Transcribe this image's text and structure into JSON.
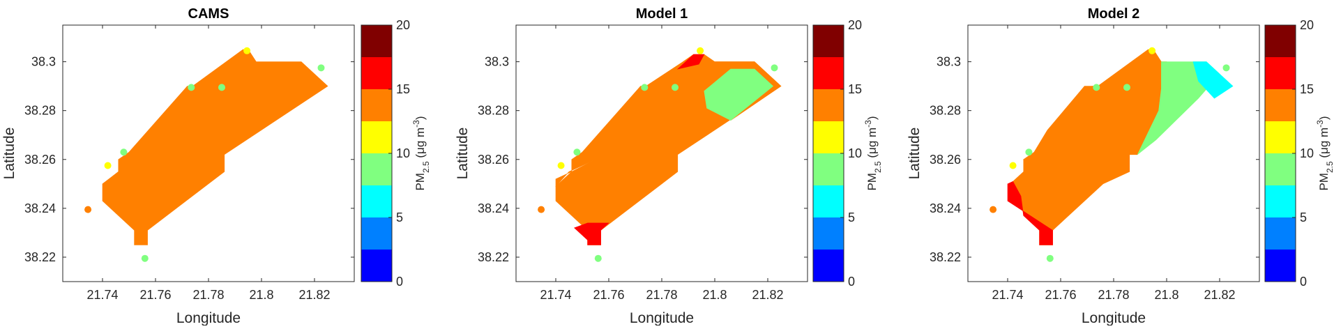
{
  "chart_data": [
    {
      "type": "heatmap",
      "title": "CAMS",
      "xlabel": "Longitude",
      "ylabel": "Latitude",
      "xlim": [
        21.725,
        21.835
      ],
      "ylim": [
        38.21,
        38.315
      ],
      "xticks": [
        21.74,
        21.76,
        21.78,
        21.8,
        21.82
      ],
      "xtick_labels": [
        "21.74",
        "21.76",
        "21.78",
        "21.8",
        "21.82"
      ],
      "yticks": [
        38.22,
        38.24,
        38.26,
        38.28,
        38.3
      ],
      "ytick_labels": [
        "38.22",
        "38.24",
        "38.26",
        "38.28",
        "38.3"
      ],
      "grid": false,
      "regions": [
        {
          "level": 12.5,
          "polygon": [
            [
              21.74,
              38.243
            ],
            [
              21.74,
              38.25
            ],
            [
              21.746,
              38.255
            ],
            [
              21.746,
              38.26
            ],
            [
              21.75,
              38.263
            ],
            [
              21.772,
              38.29
            ],
            [
              21.774,
              38.29
            ],
            [
              21.793,
              38.305
            ],
            [
              21.795,
              38.305
            ],
            [
              21.798,
              38.3
            ],
            [
              21.815,
              38.3
            ],
            [
              21.825,
              38.29
            ],
            [
              21.786,
              38.262
            ],
            [
              21.786,
              38.255
            ],
            [
              21.757,
              38.231
            ],
            [
              21.757,
              38.225
            ],
            [
              21.752,
              38.225
            ],
            [
              21.752,
              38.231
            ]
          ]
        }
      ],
      "stations": [
        {
          "lon": 21.7345,
          "lat": 38.2395,
          "value": 14
        },
        {
          "lon": 21.742,
          "lat": 38.2575,
          "value": 12
        },
        {
          "lon": 21.748,
          "lat": 38.263,
          "value": 9
        },
        {
          "lon": 21.756,
          "lat": 38.2195,
          "value": 9
        },
        {
          "lon": 21.7735,
          "lat": 38.2895,
          "value": 9
        },
        {
          "lon": 21.785,
          "lat": 38.2895,
          "value": 9
        },
        {
          "lon": 21.7945,
          "lat": 38.3045,
          "value": 12
        },
        {
          "lon": 21.8225,
          "lat": 38.2975,
          "value": 9
        }
      ]
    },
    {
      "type": "heatmap",
      "title": "Model 1",
      "xlabel": "Longitude",
      "ylabel": "Latitude",
      "xlim": [
        21.725,
        21.835
      ],
      "ylim": [
        38.21,
        38.315
      ],
      "xticks": [
        21.74,
        21.76,
        21.78,
        21.8,
        21.82
      ],
      "xtick_labels": [
        "21.74",
        "21.76",
        "21.78",
        "21.8",
        "21.82"
      ],
      "yticks": [
        38.22,
        38.24,
        38.26,
        38.28,
        38.3
      ],
      "ytick_labels": [
        "38.22",
        "38.24",
        "38.26",
        "38.28",
        "38.3"
      ],
      "grid": false,
      "regions": [
        {
          "level": 12.5,
          "polygon": [
            [
              21.74,
              38.249
            ],
            [
              21.74,
              38.252
            ],
            [
              21.746,
              38.255
            ],
            [
              21.746,
              38.26
            ],
            [
              21.75,
              38.263
            ],
            [
              21.772,
              38.29
            ],
            [
              21.774,
              38.29
            ],
            [
              21.788,
              38.3
            ],
            [
              21.792,
              38.303
            ],
            [
              21.796,
              38.303
            ],
            [
              21.8,
              38.3
            ],
            [
              21.815,
              38.3
            ],
            [
              21.825,
              38.29
            ],
            [
              21.786,
              38.262
            ],
            [
              21.786,
              38.255
            ],
            [
              21.78,
              38.25
            ],
            [
              21.765,
              38.26
            ],
            [
              21.755,
              38.26
            ],
            [
              21.745,
              38.255
            ]
          ]
        },
        {
          "level": 12.5,
          "polygon": [
            [
              21.798,
              38.3
            ],
            [
              21.815,
              38.3
            ],
            [
              21.825,
              38.29
            ],
            [
              21.806,
              38.276
            ],
            [
              21.797,
              38.286
            ],
            [
              21.792,
              38.298
            ]
          ]
        },
        {
          "level": 8.75,
          "polygon": [
            [
              21.796,
              38.288
            ],
            [
              21.806,
              38.297
            ],
            [
              21.815,
              38.297
            ],
            [
              21.822,
              38.29
            ],
            [
              21.806,
              38.276
            ],
            [
              21.797,
              38.281
            ]
          ]
        },
        {
          "level": 13.75,
          "polygon": [
            [
              21.746,
              38.255
            ],
            [
              21.755,
              38.26
            ],
            [
              21.765,
              38.26
            ],
            [
              21.78,
              38.25
            ],
            [
              21.757,
              38.231
            ],
            [
              21.757,
              38.225
            ],
            [
              21.752,
              38.225
            ],
            [
              21.752,
              38.231
            ],
            [
              21.74,
              38.243
            ],
            [
              21.74,
              38.249
            ]
          ]
        },
        {
          "level": 16.25,
          "polygon": [
            [
              21.747,
              38.232
            ],
            [
              21.752,
              38.227
            ],
            [
              21.752,
              38.225
            ],
            [
              21.757,
              38.225
            ],
            [
              21.757,
              38.231
            ],
            [
              21.76,
              38.234
            ],
            [
              21.752,
              38.234
            ]
          ]
        },
        {
          "level": 13.75,
          "polygon": [
            [
              21.788,
              38.3
            ],
            [
              21.792,
              38.303
            ],
            [
              21.798,
              38.3
            ],
            [
              21.794,
              38.296
            ]
          ]
        },
        {
          "level": 16.25,
          "polygon": [
            [
              21.786,
              38.297
            ],
            [
              21.789,
              38.3
            ],
            [
              21.792,
              38.303
            ],
            [
              21.796,
              38.303
            ],
            [
              21.794,
              38.299
            ]
          ]
        }
      ],
      "stations": [
        {
          "lon": 21.7345,
          "lat": 38.2395,
          "value": 14
        },
        {
          "lon": 21.742,
          "lat": 38.2575,
          "value": 12
        },
        {
          "lon": 21.748,
          "lat": 38.263,
          "value": 9
        },
        {
          "lon": 21.756,
          "lat": 38.2195,
          "value": 9
        },
        {
          "lon": 21.7735,
          "lat": 38.2895,
          "value": 9
        },
        {
          "lon": 21.785,
          "lat": 38.2895,
          "value": 9
        },
        {
          "lon": 21.7945,
          "lat": 38.3045,
          "value": 12
        },
        {
          "lon": 21.8225,
          "lat": 38.2975,
          "value": 9
        }
      ]
    },
    {
      "type": "heatmap",
      "title": "Model 2",
      "xlabel": "Longitude",
      "ylabel": "Latitude",
      "xlim": [
        21.725,
        21.835
      ],
      "ylim": [
        38.21,
        38.315
      ],
      "xticks": [
        21.74,
        21.76,
        21.78,
        21.8,
        21.82
      ],
      "xtick_labels": [
        "21.74",
        "21.76",
        "21.78",
        "21.8",
        "21.82"
      ],
      "yticks": [
        38.22,
        38.24,
        38.26,
        38.28,
        38.3
      ],
      "ytick_labels": [
        "38.22",
        "38.24",
        "38.26",
        "38.28",
        "38.3"
      ],
      "grid": false,
      "regions": [
        {
          "level": 12.5,
          "polygon": [
            [
              21.746,
              38.26
            ],
            [
              21.75,
              38.263
            ],
            [
              21.772,
              38.29
            ],
            [
              21.774,
              38.29
            ],
            [
              21.793,
              38.305
            ],
            [
              21.795,
              38.305
            ],
            [
              21.798,
              38.3
            ],
            [
              21.8,
              38.3
            ],
            [
              21.798,
              38.289
            ],
            [
              21.797,
              38.28
            ],
            [
              21.789,
              38.262
            ],
            [
              21.786,
              38.262
            ],
            [
              21.786,
              38.255
            ],
            [
              21.776,
              38.25
            ],
            [
              21.76,
              38.257
            ],
            [
              21.748,
              38.26
            ]
          ]
        },
        {
          "level": 8.75,
          "polygon": [
            [
              21.798,
              38.3
            ],
            [
              21.815,
              38.3
            ],
            [
              21.82,
              38.295
            ],
            [
              21.812,
              38.285
            ],
            [
              21.796,
              38.268
            ],
            [
              21.789,
              38.262
            ],
            [
              21.797,
              38.28
            ],
            [
              21.798,
              38.289
            ]
          ]
        },
        {
          "level": 6.25,
          "polygon": [
            [
              21.81,
              38.3
            ],
            [
              21.815,
              38.3
            ],
            [
              21.825,
              38.29
            ],
            [
              21.818,
              38.285
            ],
            [
              21.812,
              38.292
            ]
          ]
        },
        {
          "level": 13.75,
          "polygon": [
            [
              21.748,
              38.26
            ],
            [
              21.76,
              38.257
            ],
            [
              21.776,
              38.25
            ],
            [
              21.757,
              38.231
            ],
            [
              21.757,
              38.225
            ],
            [
              21.752,
              38.225
            ],
            [
              21.752,
              38.231
            ],
            [
              21.746,
              38.237
            ],
            [
              21.745,
              38.245
            ],
            [
              21.742,
              38.251
            ],
            [
              21.746,
              38.255
            ],
            [
              21.746,
              38.26
            ]
          ]
        },
        {
          "level": 16.25,
          "polygon": [
            [
              21.74,
              38.243
            ],
            [
              21.74,
              38.25
            ],
            [
              21.742,
              38.251
            ],
            [
              21.745,
              38.245
            ],
            [
              21.746,
              38.237
            ],
            [
              21.752,
              38.231
            ],
            [
              21.752,
              38.225
            ],
            [
              21.757,
              38.225
            ],
            [
              21.757,
              38.231
            ]
          ]
        },
        {
          "level": 13.75,
          "polygon": [
            [
              21.75,
              38.263
            ],
            [
              21.772,
              38.29
            ],
            [
              21.769,
              38.29
            ],
            [
              21.755,
              38.272
            ]
          ]
        }
      ],
      "stations": [
        {
          "lon": 21.7345,
          "lat": 38.2395,
          "value": 14
        },
        {
          "lon": 21.742,
          "lat": 38.2575,
          "value": 12
        },
        {
          "lon": 21.748,
          "lat": 38.263,
          "value": 9
        },
        {
          "lon": 21.756,
          "lat": 38.2195,
          "value": 9
        },
        {
          "lon": 21.7735,
          "lat": 38.2895,
          "value": 9
        },
        {
          "lon": 21.785,
          "lat": 38.2895,
          "value": 9
        },
        {
          "lon": 21.7945,
          "lat": 38.3045,
          "value": 12
        },
        {
          "lon": 21.8225,
          "lat": 38.2975,
          "value": 9
        }
      ]
    }
  ],
  "colorbar": {
    "label_main": "PM",
    "label_sub": "2.5",
    "label_unit": " (μg m",
    "label_sup": "-3",
    "label_end": ")",
    "range": [
      0,
      20
    ],
    "ticks": [
      0,
      5,
      10,
      15,
      20
    ],
    "tick_labels": [
      "0",
      "5",
      "10",
      "15",
      "20"
    ],
    "bands": [
      {
        "from": 0,
        "to": 2.5,
        "color": "#0000ff"
      },
      {
        "from": 2.5,
        "to": 5,
        "color": "#0080ff"
      },
      {
        "from": 5,
        "to": 7.5,
        "color": "#00ffff"
      },
      {
        "from": 7.5,
        "to": 10,
        "color": "#80ff80"
      },
      {
        "from": 10,
        "to": 12.5,
        "color": "#ffff00"
      },
      {
        "from": 12.5,
        "to": 15,
        "color": "#ff8000"
      },
      {
        "from": 15,
        "to": 17.5,
        "color": "#ff0000"
      },
      {
        "from": 17.5,
        "to": 20,
        "color": "#800000"
      }
    ]
  }
}
